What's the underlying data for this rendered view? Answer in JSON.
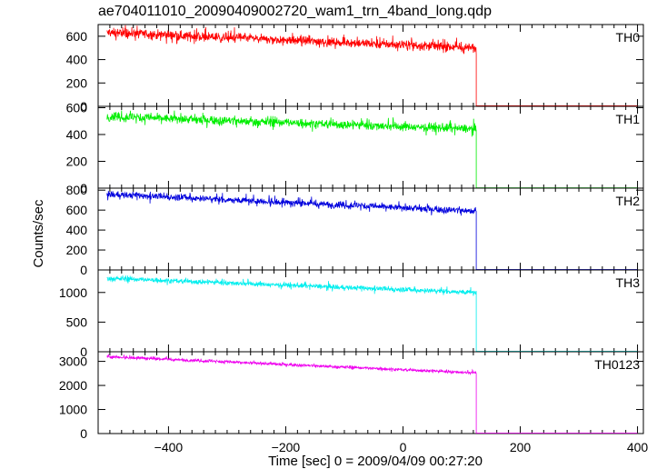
{
  "title": "ae704011010_20090409002720_wam1_trn_4band_long.qdp",
  "chart_data": {
    "type": "line",
    "title": "ae704011010_20090409002720_wam1_trn_4band_long.qdp",
    "xlabel": "Time [sec] 0 = 2009/04/09 00:27:20",
    "ylabel": "Counts/sec",
    "xlim": [
      -520,
      410
    ],
    "xticks": [
      -400,
      -200,
      0,
      200,
      400
    ],
    "x_start": -505,
    "x_step": 0.5,
    "drop_time": 125,
    "grid": false,
    "panels": [
      {
        "name": "TH0",
        "color": "#ff0000",
        "ylim": [
          0,
          700
        ],
        "yticks": [
          0,
          200,
          400,
          600
        ],
        "rate_start": 630,
        "rate_end": 500,
        "noise": 38,
        "spike": 28,
        "after_drop": 5
      },
      {
        "name": "TH1",
        "color": "#00ee00",
        "ylim": [
          0,
          610
        ],
        "yticks": [
          0,
          200,
          400,
          600
        ],
        "rate_start": 535,
        "rate_end": 440,
        "noise": 30,
        "spike": 24,
        "after_drop": 3
      },
      {
        "name": "TH2",
        "color": "#0000dd",
        "ylim": [
          0,
          820
        ],
        "yticks": [
          0,
          200,
          400,
          600,
          800
        ],
        "rate_start": 760,
        "rate_end": 590,
        "noise": 30,
        "spike": 25,
        "after_drop": 5
      },
      {
        "name": "TH3",
        "color": "#00eeee",
        "ylim": [
          0,
          1380
        ],
        "yticks": [
          0,
          500,
          1000
        ],
        "rate_start": 1240,
        "rate_end": 1000,
        "noise": 38,
        "spike": 30,
        "after_drop": 8
      },
      {
        "name": "TH0123",
        "color": "#ee00ee",
        "ylim": [
          0,
          3400
        ],
        "yticks": [
          0,
          1000,
          2000,
          3000
        ],
        "rate_start": 3200,
        "rate_end": 2520,
        "noise": 55,
        "spike": 40,
        "after_drop": 20
      }
    ]
  }
}
